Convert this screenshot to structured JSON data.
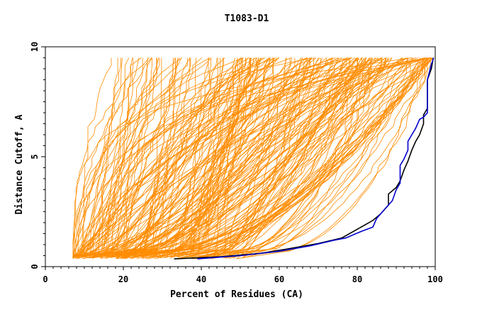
{
  "chart_data": {
    "type": "line",
    "title": "T1083-D1",
    "xlabel": "Percent of Residues (CA)",
    "ylabel": "Distance Cutoff, A",
    "xlim": [
      0,
      100
    ],
    "ylim": [
      0,
      10
    ],
    "x_ticks": [
      0,
      20,
      40,
      60,
      80,
      100
    ],
    "y_ticks": [
      0,
      5,
      10
    ],
    "grid": false,
    "legend": "none",
    "background_bundle": {
      "color": "#ff8c00",
      "count": 220
    },
    "series": [
      {
        "color": "#000000",
        "points": [
          [
            33,
            0.35
          ],
          [
            45,
            0.45
          ],
          [
            55,
            0.6
          ],
          [
            62,
            0.8
          ],
          [
            70,
            1.05
          ],
          [
            76,
            1.3
          ],
          [
            80,
            1.7
          ],
          [
            84,
            2.1
          ],
          [
            86,
            2.4
          ],
          [
            88,
            2.8
          ],
          [
            88,
            3.3
          ],
          [
            90,
            3.6
          ],
          [
            91,
            3.9
          ],
          [
            92,
            4.4
          ],
          [
            93,
            4.8
          ],
          [
            94,
            5.3
          ],
          [
            95,
            5.7
          ],
          [
            96,
            6.0
          ],
          [
            97,
            6.5
          ],
          [
            97,
            6.9
          ],
          [
            98,
            7.2
          ],
          [
            98,
            8.5
          ],
          [
            99,
            9.0
          ],
          [
            99.5,
            9.5
          ]
        ]
      },
      {
        "color": "#0000cc",
        "points": [
          [
            39,
            0.35
          ],
          [
            50,
            0.5
          ],
          [
            60,
            0.7
          ],
          [
            68,
            0.95
          ],
          [
            74,
            1.2
          ],
          [
            77,
            1.3
          ],
          [
            81,
            1.6
          ],
          [
            84,
            1.8
          ],
          [
            85,
            2.2
          ],
          [
            87,
            2.6
          ],
          [
            89,
            3.0
          ],
          [
            90,
            3.5
          ],
          [
            91,
            3.8
          ],
          [
            91,
            4.6
          ],
          [
            92,
            4.9
          ],
          [
            93,
            5.3
          ],
          [
            93,
            5.7
          ],
          [
            94,
            6.0
          ],
          [
            95,
            6.3
          ],
          [
            96,
            6.7
          ],
          [
            97,
            6.8
          ],
          [
            98,
            7.0
          ],
          [
            98,
            7.5
          ],
          [
            98,
            8.5
          ],
          [
            99,
            9.2
          ],
          [
            99.6,
            9.5
          ]
        ]
      }
    ]
  }
}
